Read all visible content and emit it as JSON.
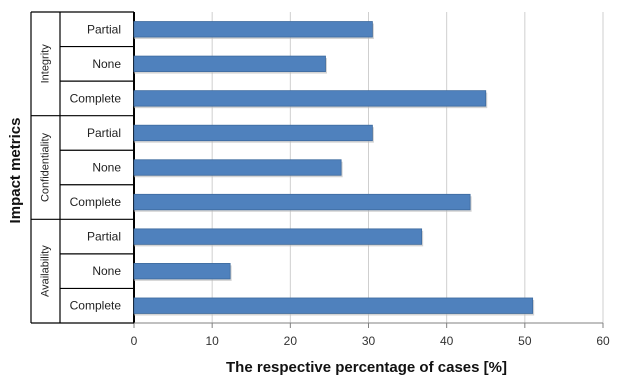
{
  "chart_data": {
    "type": "bar",
    "orientation": "horizontal",
    "xlabel": "The respective percentage of cases [%]",
    "ylabel": "Impact metrics",
    "xlim": [
      0,
      60
    ],
    "x_ticks": [
      0,
      10,
      20,
      30,
      40,
      50,
      60
    ],
    "grid": true,
    "bar_color": "#4F81BD",
    "groups": [
      {
        "name": "Integrity",
        "categories": [
          "Partial",
          "None",
          "Complete"
        ],
        "values": [
          30.5,
          24.5,
          45
        ]
      },
      {
        "name": "Confidentiality",
        "categories": [
          "Partial",
          "None",
          "Complete"
        ],
        "values": [
          30.5,
          26.5,
          43
        ]
      },
      {
        "name": "Availability",
        "categories": [
          "Partial",
          "None",
          "Complete"
        ],
        "values": [
          36.8,
          12.3,
          51
        ]
      }
    ]
  }
}
